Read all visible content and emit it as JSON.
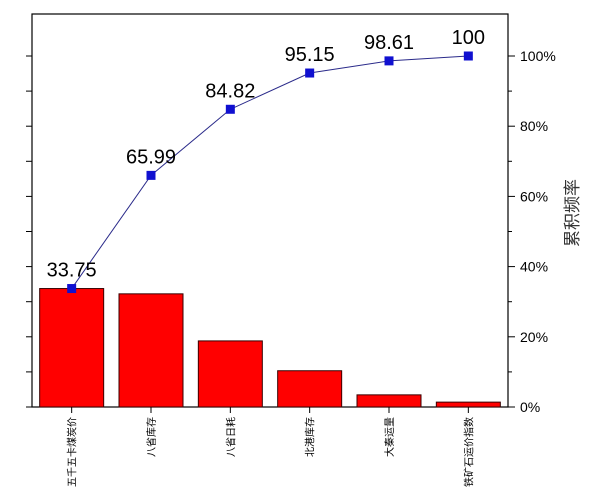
{
  "chart_data": {
    "type": "bar",
    "categories": [
      "五千五卡煤炭价",
      "八省库存",
      "八省日耗",
      "北港库存",
      "大秦运量",
      "铁矿石运价指数"
    ],
    "values": [
      33.75,
      32.24,
      18.83,
      10.33,
      3.46,
      1.39
    ],
    "series": [
      {
        "type": "line",
        "axis": "right",
        "values": [
          33.75,
          65.99,
          84.82,
          95.15,
          98.61,
          100
        ]
      }
    ],
    "data_labels": [
      "33.75",
      "65.99",
      "84.82",
      "95.15",
      "98.61",
      "100"
    ],
    "right_axis": {
      "label": "累积频率",
      "ticks": [
        "0%",
        "20%",
        "40%",
        "60%",
        "80%",
        "100%"
      ],
      "ylim": [
        0,
        100
      ]
    },
    "ylim": [
      0,
      100
    ],
    "grid": false,
    "legend": "none",
    "colors": {
      "bar": "#ff0000",
      "line": "#2a2a8a",
      "marker": "#1010d0"
    }
  }
}
